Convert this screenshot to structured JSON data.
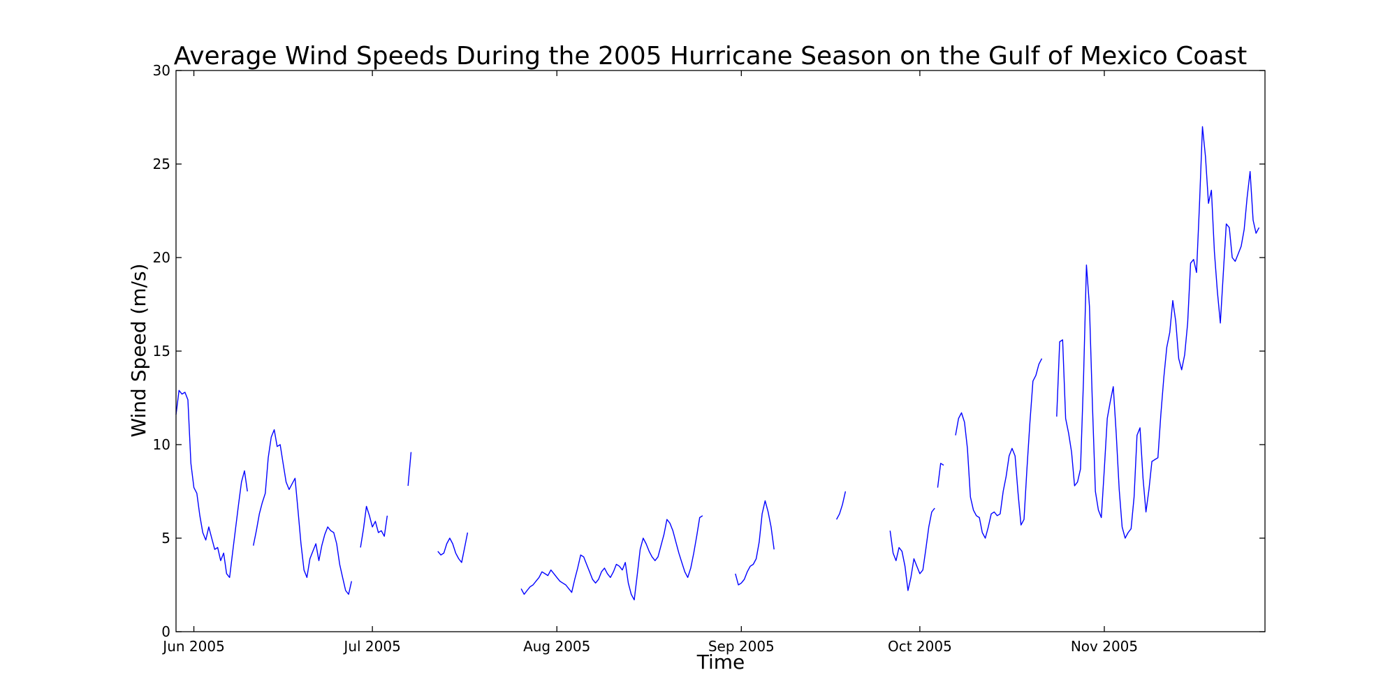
{
  "chart_data": {
    "type": "line",
    "title": "Average Wind Speeds During the 2005 Hurricane Season on the Gulf of Mexico Coast",
    "xlabel": "Time",
    "ylabel": "Wind Speed (m/s)",
    "xlim": [
      "2005-05-29",
      "2005-11-28"
    ],
    "ylim": [
      0,
      30
    ],
    "grid": false,
    "legend": "none",
    "line_color": "#0000ff",
    "x_ticks": [
      {
        "date": "2005-06-01",
        "label": "Jun 2005"
      },
      {
        "date": "2005-07-01",
        "label": "Jul 2005"
      },
      {
        "date": "2005-08-01",
        "label": "Aug 2005"
      },
      {
        "date": "2005-09-01",
        "label": "Sep 2005"
      },
      {
        "date": "2005-10-01",
        "label": "Oct 2005"
      },
      {
        "date": "2005-11-01",
        "label": "Nov 2005"
      }
    ],
    "y_ticks": [
      {
        "value": 0,
        "label": "0"
      },
      {
        "value": 5,
        "label": "5"
      },
      {
        "value": 10,
        "label": "10"
      },
      {
        "value": 15,
        "label": "15"
      },
      {
        "value": 20,
        "label": "20"
      },
      {
        "value": 25,
        "label": "25"
      },
      {
        "value": 30,
        "label": "30"
      }
    ],
    "segments": [
      {
        "start": "2005-05-29",
        "step_hours": 12,
        "values": [
          11.6,
          12.9,
          12.7,
          12.8,
          12.4,
          9.0,
          7.7,
          7.4,
          6.2,
          5.3,
          4.9,
          5.6,
          5.0,
          4.4,
          4.5,
          3.8,
          4.2,
          3.1,
          2.9,
          4.2,
          5.5,
          6.8,
          8.0,
          8.6,
          7.5
        ]
      },
      {
        "start": "2005-06-11",
        "step_hours": 12,
        "values": [
          4.6,
          5.4,
          6.3,
          6.9,
          7.4,
          9.3,
          10.4,
          10.8,
          9.9,
          10.0,
          9.0,
          8.0,
          7.6,
          7.9,
          8.2,
          6.5,
          4.7,
          3.3,
          2.9,
          3.9,
          4.3,
          4.7,
          3.8,
          4.6,
          5.2,
          5.6,
          5.4,
          5.3,
          4.7,
          3.6,
          2.9,
          2.2,
          2.0,
          2.7
        ]
      },
      {
        "start": "2005-06-29",
        "step_hours": 12,
        "values": [
          4.5,
          5.5,
          6.7,
          6.2,
          5.6,
          5.9,
          5.3,
          5.4,
          5.1,
          6.2
        ]
      },
      {
        "start": "2005-07-07",
        "step_hours": 12,
        "values": [
          7.8,
          9.6
        ]
      },
      {
        "start": "2005-07-12",
        "step_hours": 12,
        "values": [
          4.3,
          4.1,
          4.2,
          4.7,
          5.0,
          4.7,
          4.2,
          3.9,
          3.7,
          4.5,
          5.3
        ]
      },
      {
        "start": "2005-07-26",
        "step_hours": 12,
        "values": [
          2.3,
          2.0,
          2.2,
          2.4,
          2.5,
          2.7,
          2.9,
          3.2,
          3.1,
          3.0,
          3.3,
          3.1,
          2.9,
          2.7,
          2.6,
          2.5,
          2.3,
          2.1,
          2.8,
          3.4,
          4.1,
          4.0,
          3.6,
          3.2,
          2.8,
          2.6,
          2.8,
          3.2,
          3.4,
          3.1,
          2.9,
          3.2,
          3.6,
          3.5,
          3.3,
          3.7,
          2.6,
          2.0,
          1.7,
          3.0,
          4.4,
          5.0,
          4.7,
          4.3,
          4.0,
          3.8,
          4.0,
          4.6,
          5.2,
          6.0,
          5.8,
          5.4,
          4.8,
          4.2,
          3.7,
          3.2,
          2.9,
          3.4,
          4.2,
          5.1,
          6.1,
          6.2
        ]
      },
      {
        "start": "2005-08-31",
        "step_hours": 12,
        "values": [
          3.1,
          2.5,
          2.6,
          2.8,
          3.2,
          3.5,
          3.6,
          3.9,
          4.8,
          6.3,
          7.0,
          6.4,
          5.6,
          4.4
        ]
      },
      {
        "start": "2005-09-17",
        "step_hours": 12,
        "values": [
          6.0,
          6.3,
          6.8,
          7.5
        ]
      },
      {
        "start": "2005-09-26",
        "step_hours": 12,
        "values": [
          5.4,
          4.2,
          3.8,
          4.5,
          4.3,
          3.5,
          2.2,
          2.9,
          3.9,
          3.5,
          3.1,
          3.3,
          4.4,
          5.6,
          6.4,
          6.6
        ]
      },
      {
        "start": "2005-10-04",
        "step_hours": 12,
        "values": [
          7.7,
          9.0,
          8.9
        ]
      },
      {
        "start": "2005-10-07",
        "step_hours": 12,
        "values": [
          10.5,
          11.4,
          11.7,
          11.2,
          9.8,
          7.2,
          6.5,
          6.2,
          6.1,
          5.3,
          5.0,
          5.6,
          6.3,
          6.4,
          6.2,
          6.3,
          7.5,
          8.3,
          9.4,
          9.8,
          9.4,
          7.4,
          5.7,
          6.0,
          8.7,
          11.2,
          13.4,
          13.7,
          14.3,
          14.6
        ]
      },
      {
        "start": "2005-10-24",
        "step_hours": 12,
        "values": [
          11.5,
          15.5,
          15.6,
          11.4,
          10.6,
          9.6,
          7.8,
          8.0,
          8.7,
          13.5,
          19.6,
          17.4,
          12.2,
          7.5,
          6.5,
          6.1,
          8.7,
          11.4,
          12.3,
          13.1,
          10.6,
          7.6,
          5.6,
          5.0,
          5.3,
          5.5,
          7.2,
          10.5,
          10.9,
          8.2,
          6.4,
          7.6,
          9.1,
          9.2,
          9.3,
          11.6,
          13.6,
          15.2,
          16.0,
          17.7,
          16.6,
          14.6,
          14.0,
          14.8,
          16.5,
          19.7,
          19.9,
          19.2,
          22.9,
          27.0,
          25.4,
          22.9,
          23.6,
          20.3,
          18.2,
          16.5,
          19.2,
          21.8,
          21.6,
          20.0,
          19.8,
          20.2,
          20.6,
          21.5,
          23.2,
          24.6,
          22.0,
          21.3,
          21.6
        ]
      }
    ]
  }
}
